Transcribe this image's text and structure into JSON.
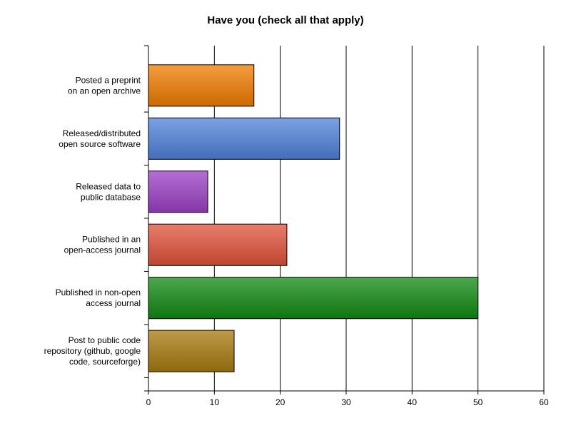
{
  "chart_data": {
    "type": "bar",
    "orientation": "horizontal",
    "title": "Have you (check all that apply)",
    "xlabel": "",
    "ylabel": "",
    "categories": [
      [
        "Posted a preprint",
        "on an open archive"
      ],
      [
        "Released/distributed",
        "open source software"
      ],
      [
        "Released data to",
        "public database"
      ],
      [
        "Published in an",
        "open-access journal"
      ],
      [
        "Published in non-open",
        "access journal"
      ],
      [
        "Post to public code",
        "repository (github, google",
        "code, sourceforge)"
      ]
    ],
    "values": [
      16,
      29,
      9,
      21,
      50,
      13
    ],
    "colors": [
      "#f07c00",
      "#4f81d9",
      "#9b3fc4",
      "#e0523a",
      "#128a12",
      "#a87a0e"
    ],
    "xlim": [
      0,
      60
    ],
    "xticks": [
      "0",
      "10",
      "20",
      "30",
      "40",
      "50",
      "60"
    ],
    "grid": true,
    "legend": "none"
  }
}
